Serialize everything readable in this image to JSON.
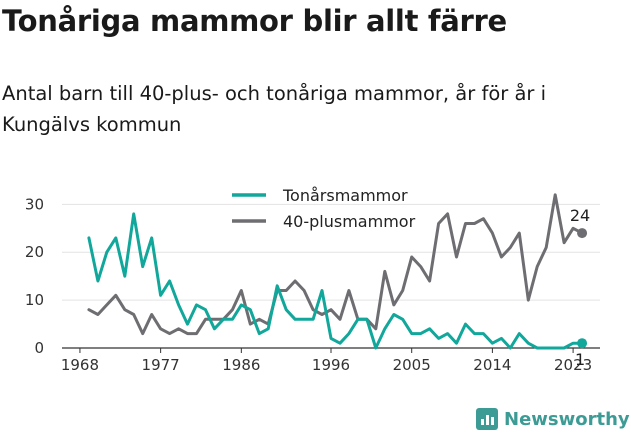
{
  "header": {
    "title": "Tonåriga mammor blir allt färre",
    "subtitle": "Antal barn till 40-plus- och tonåriga mammor, år för år i Kungälvs kommun"
  },
  "brand": {
    "name": "Newsworthy",
    "color": "#3c9b94",
    "icon": "newsworthy-logo-icon"
  },
  "chart_data": {
    "type": "line",
    "title": "",
    "xlabel": "",
    "ylabel": "",
    "xlim": [
      1966,
      2026
    ],
    "ylim": [
      0,
      33
    ],
    "x_ticks": [
      1968,
      1977,
      1986,
      1996,
      2005,
      2014,
      2023
    ],
    "y_ticks": [
      0,
      10,
      20,
      30
    ],
    "grid": "horizontal",
    "legend_position": "top-center",
    "x": [
      1969,
      1970,
      1971,
      1972,
      1973,
      1974,
      1975,
      1976,
      1977,
      1978,
      1979,
      1980,
      1981,
      1982,
      1983,
      1984,
      1985,
      1986,
      1987,
      1988,
      1989,
      1990,
      1991,
      1992,
      1993,
      1994,
      1995,
      1996,
      1997,
      1998,
      1999,
      2000,
      2001,
      2002,
      2003,
      2004,
      2005,
      2006,
      2007,
      2008,
      2009,
      2010,
      2011,
      2012,
      2013,
      2014,
      2015,
      2016,
      2017,
      2018,
      2019,
      2020,
      2021,
      2022,
      2023,
      2024
    ],
    "series": [
      {
        "name": "Tonårsmammor",
        "color": "#11a79b",
        "values": [
          23,
          14,
          20,
          23,
          15,
          28,
          17,
          23,
          11,
          14,
          9,
          5,
          9,
          8,
          4,
          6,
          6,
          9,
          8,
          3,
          4,
          13,
          8,
          6,
          6,
          6,
          12,
          2,
          1,
          3,
          6,
          6,
          0,
          4,
          7,
          6,
          3,
          3,
          4,
          2,
          3,
          1,
          5,
          3,
          3,
          1,
          2,
          0,
          3,
          1,
          0,
          0,
          0,
          0,
          1,
          1
        ],
        "end_label": "1"
      },
      {
        "name": "40-plusmammor",
        "color": "#6e6e72",
        "values": [
          8,
          7,
          9,
          11,
          8,
          7,
          3,
          7,
          4,
          3,
          4,
          3,
          3,
          6,
          6,
          6,
          8,
          12,
          5,
          6,
          5,
          12,
          12,
          14,
          12,
          8,
          7,
          8,
          6,
          12,
          6,
          6,
          4,
          16,
          9,
          12,
          19,
          17,
          14,
          26,
          28,
          19,
          26,
          26,
          27,
          24,
          19,
          21,
          24,
          10,
          17,
          21,
          32,
          22,
          25,
          24
        ],
        "end_label": "24"
      }
    ]
  }
}
